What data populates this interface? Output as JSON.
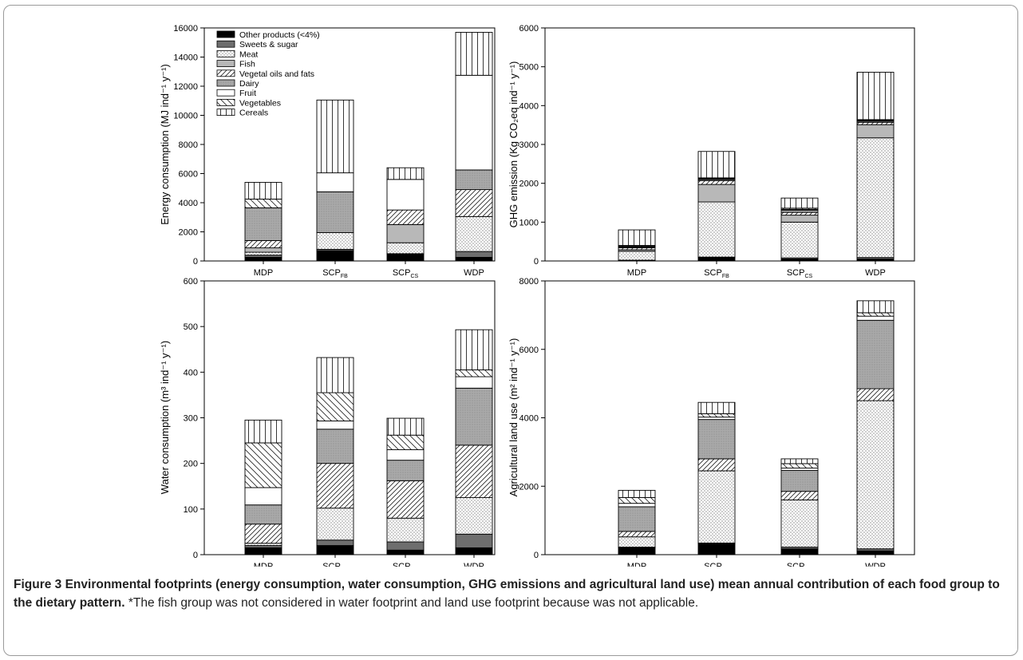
{
  "figure": {
    "caption_title": "Figure 3 Environmental footprints (energy consumption, water consumption, GHG emissions and agricultural land use) mean annual contribution of each food group to the dietary pattern.",
    "caption_note": "*The fish group was not considered in water footprint and land use footprint because was not applicable."
  },
  "colors": {
    "other_products": "#000000",
    "sweets_sugar": "#6e6e6e",
    "fish": "#b8b8b8",
    "dairy": "#a8a8a8",
    "fruit": "#ffffff"
  },
  "chart_data": [
    {
      "type": "bar",
      "stacked": true,
      "panel": "top-left",
      "ylabel": "Energy consumption (MJ ind⁻¹ y⁻¹)",
      "ylim": [
        0,
        16000
      ],
      "yticks": [
        0,
        2000,
        4000,
        6000,
        8000,
        10000,
        12000,
        14000,
        16000
      ],
      "categories": [
        {
          "base": "MDP",
          "sub": ""
        },
        {
          "base": "SCP",
          "sub": "FB"
        },
        {
          "base": "SCP",
          "sub": "CS"
        },
        {
          "base": "WDP",
          "sub": ""
        }
      ],
      "legend_position": "top-left",
      "series": [
        {
          "name": "Other products (<4%)",
          "pattern": "solid-black",
          "values": [
            250,
            700,
            450,
            250
          ]
        },
        {
          "name": "Sweets & sugar",
          "pattern": "solid-dark",
          "values": [
            150,
            100,
            50,
            400
          ]
        },
        {
          "name": "Meat",
          "pattern": "dots",
          "values": [
            200,
            1150,
            750,
            2400
          ]
        },
        {
          "name": "Fish",
          "pattern": "solid-light",
          "values": [
            300,
            0,
            1250,
            0
          ]
        },
        {
          "name": "Vegetal oils and fats",
          "pattern": "hatch-forward",
          "values": [
            500,
            0,
            1000,
            1850
          ]
        },
        {
          "name": "Dairy",
          "pattern": "dense-gray",
          "values": [
            2250,
            2800,
            0,
            1350
          ]
        },
        {
          "name": "Fruit",
          "pattern": "white",
          "values": [
            0,
            1300,
            2100,
            6500
          ]
        },
        {
          "name": "Vegetables",
          "pattern": "hatch-back",
          "values": [
            600,
            0,
            0,
            0
          ]
        },
        {
          "name": "Cereals",
          "pattern": "vertical-lines",
          "values": [
            1150,
            5000,
            800,
            2950
          ]
        }
      ]
    },
    {
      "type": "bar",
      "stacked": true,
      "panel": "top-right",
      "ylabel": "GHG emission (Kg CO₂eq ind⁻¹ y⁻¹)",
      "ylim": [
        0,
        6000
      ],
      "yticks": [
        0,
        1000,
        2000,
        3000,
        4000,
        5000,
        6000
      ],
      "categories": [
        {
          "base": "MDP",
          "sub": ""
        },
        {
          "base": "SCP",
          "sub": "FB"
        },
        {
          "base": "SCP",
          "sub": "CS"
        },
        {
          "base": "WDP",
          "sub": ""
        }
      ],
      "series": [
        {
          "name": "Other products (<4%)",
          "pattern": "solid-black",
          "values": [
            10,
            90,
            50,
            50
          ]
        },
        {
          "name": "Sweets & sugar",
          "pattern": "solid-dark",
          "values": [
            10,
            10,
            30,
            40
          ]
        },
        {
          "name": "Meat",
          "pattern": "dots",
          "values": [
            230,
            1420,
            920,
            3080
          ]
        },
        {
          "name": "Fish",
          "pattern": "solid-light",
          "values": [
            40,
            450,
            180,
            340
          ]
        },
        {
          "name": "Vegetal oils and fats",
          "pattern": "hatch-forward",
          "values": [
            50,
            100,
            70,
            60
          ]
        },
        {
          "name": "Dairy",
          "pattern": "dense-gray",
          "values": [
            20,
            30,
            60,
            30
          ]
        },
        {
          "name": "Fruit",
          "pattern": "white",
          "values": [
            20,
            20,
            20,
            20
          ]
        },
        {
          "name": "Vegetables",
          "pattern": "hatch-back",
          "values": [
            20,
            20,
            30,
            20
          ]
        },
        {
          "name": "Cereals",
          "pattern": "vertical-lines",
          "values": [
            400,
            680,
            260,
            1220
          ]
        }
      ]
    },
    {
      "type": "bar",
      "stacked": true,
      "panel": "bottom-left",
      "ylabel": "Water consumption (m³ ind⁻¹ y⁻¹)",
      "ylim": [
        0,
        600
      ],
      "yticks": [
        0,
        100,
        200,
        300,
        400,
        500,
        600
      ],
      "categories": [
        {
          "base": "MDP",
          "sub": ""
        },
        {
          "base": "SCP",
          "sub": "FB"
        },
        {
          "base": "SCP",
          "sub": "CS"
        },
        {
          "base": "WDP",
          "sub": ""
        }
      ],
      "series": [
        {
          "name": "Other products (<4%)",
          "pattern": "solid-black",
          "values": [
            15,
            20,
            10,
            15
          ]
        },
        {
          "name": "Sweets & sugar",
          "pattern": "solid-dark",
          "values": [
            5,
            12,
            18,
            30
          ]
        },
        {
          "name": "Meat",
          "pattern": "dots",
          "values": [
            5,
            70,
            52,
            80
          ]
        },
        {
          "name": "Vegetal oils and fats",
          "pattern": "hatch-forward",
          "values": [
            42,
            98,
            82,
            115
          ]
        },
        {
          "name": "Dairy",
          "pattern": "dense-gray",
          "values": [
            42,
            75,
            45,
            125
          ]
        },
        {
          "name": "Fruit",
          "pattern": "white",
          "values": [
            38,
            18,
            23,
            25
          ]
        },
        {
          "name": "Vegetables",
          "pattern": "hatch-back",
          "values": [
            98,
            62,
            32,
            15
          ]
        },
        {
          "name": "Cereals",
          "pattern": "vertical-lines",
          "values": [
            50,
            77,
            37,
            88
          ]
        }
      ]
    },
    {
      "type": "bar",
      "stacked": true,
      "panel": "bottom-right",
      "ylabel": "Agricultural land use (m² ind⁻¹ y⁻¹)",
      "ylim": [
        0,
        8000
      ],
      "yticks": [
        0,
        2000,
        4000,
        6000,
        8000
      ],
      "categories": [
        {
          "base": "MDP",
          "sub": ""
        },
        {
          "base": "SCP",
          "sub": "FB"
        },
        {
          "base": "SCP",
          "sub": "CS"
        },
        {
          "base": "WDP",
          "sub": ""
        }
      ],
      "series": [
        {
          "name": "Other products (<4%)",
          "pattern": "solid-black",
          "values": [
            200,
            320,
            170,
            110
          ]
        },
        {
          "name": "Sweets & sugar",
          "pattern": "solid-dark",
          "values": [
            20,
            20,
            50,
            60
          ]
        },
        {
          "name": "Meat",
          "pattern": "dots",
          "values": [
            300,
            2110,
            1380,
            4330
          ]
        },
        {
          "name": "Vegetal oils and fats",
          "pattern": "hatch-forward",
          "values": [
            160,
            350,
            250,
            350
          ]
        },
        {
          "name": "Dairy",
          "pattern": "dense-gray",
          "values": [
            720,
            1150,
            610,
            2000
          ]
        },
        {
          "name": "Fruit",
          "pattern": "white",
          "values": [
            100,
            70,
            70,
            120
          ]
        },
        {
          "name": "Vegetables",
          "pattern": "hatch-back",
          "values": [
            170,
            100,
            130,
            100
          ]
        },
        {
          "name": "Cereals",
          "pattern": "vertical-lines",
          "values": [
            210,
            330,
            140,
            350
          ]
        }
      ]
    }
  ]
}
